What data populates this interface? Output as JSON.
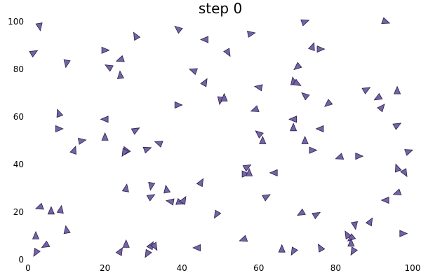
{
  "chart_data": {
    "type": "scatter",
    "title": "step 0",
    "xlabel": "",
    "ylabel": "",
    "xlim": [
      0,
      100
    ],
    "ylim": [
      0,
      100
    ],
    "x_ticks": [
      "0",
      "20",
      "40",
      "60",
      "80",
      "100"
    ],
    "y_ticks": [
      "0",
      "20",
      "40",
      "60",
      "80",
      "100"
    ],
    "grid": false,
    "legend": "none",
    "marker": "triangle",
    "marker_color": "#7563a8",
    "points": [
      {
        "x": 3,
        "y": 98,
        "angle": -80
      },
      {
        "x": 1.5,
        "y": 87,
        "angle": 30
      },
      {
        "x": 10,
        "y": 82.5,
        "angle": -100
      },
      {
        "x": 20,
        "y": 88,
        "angle": 0
      },
      {
        "x": 21,
        "y": 81,
        "angle": 150
      },
      {
        "x": 24,
        "y": 84,
        "angle": 200
      },
      {
        "x": 24,
        "y": 77.5,
        "angle": 95
      },
      {
        "x": 28,
        "y": 94,
        "angle": 120
      },
      {
        "x": 39,
        "y": 97,
        "angle": 140
      },
      {
        "x": 46,
        "y": 92.5,
        "angle": 180
      },
      {
        "x": 52,
        "y": 87,
        "angle": -60
      },
      {
        "x": 58,
        "y": 95,
        "angle": 10
      },
      {
        "x": 72,
        "y": 100,
        "angle": 20
      },
      {
        "x": 74,
        "y": 89.5,
        "angle": 70
      },
      {
        "x": 76,
        "y": 88.5,
        "angle": 0
      },
      {
        "x": 70,
        "y": 81,
        "angle": 220
      },
      {
        "x": 43,
        "y": 79.5,
        "angle": 160
      },
      {
        "x": 46,
        "y": 74.5,
        "angle": 60
      },
      {
        "x": 39,
        "y": 65,
        "angle": 0
      },
      {
        "x": 50,
        "y": 67,
        "angle": -100
      },
      {
        "x": 51,
        "y": 68,
        "angle": 90
      },
      {
        "x": 60,
        "y": 72.5,
        "angle": 170
      },
      {
        "x": 69,
        "y": 75,
        "angle": 100
      },
      {
        "x": 70,
        "y": 74,
        "angle": -30
      },
      {
        "x": 72,
        "y": 69,
        "angle": 140
      },
      {
        "x": 78,
        "y": 65.5,
        "angle": 220
      },
      {
        "x": 88,
        "y": 71.5,
        "angle": 30
      },
      {
        "x": 91,
        "y": 68,
        "angle": 210
      },
      {
        "x": 96,
        "y": 71,
        "angle": 90
      },
      {
        "x": 92,
        "y": 64,
        "angle": 50
      },
      {
        "x": 93,
        "y": 100,
        "angle": -20
      },
      {
        "x": 8,
        "y": 61.5,
        "angle": 110
      },
      {
        "x": 8,
        "y": 55,
        "angle": 0
      },
      {
        "x": 20,
        "y": 59,
        "angle": 180
      },
      {
        "x": 28,
        "y": 54.5,
        "angle": 30
      },
      {
        "x": 20,
        "y": 51.5,
        "angle": 90
      },
      {
        "x": 14,
        "y": 50,
        "angle": 10
      },
      {
        "x": 12,
        "y": 46,
        "angle": 70
      },
      {
        "x": 25.5,
        "y": 46,
        "angle": 120
      },
      {
        "x": 25,
        "y": 45,
        "angle": 240
      },
      {
        "x": 31,
        "y": 46.5,
        "angle": 20
      },
      {
        "x": 34,
        "y": 49,
        "angle": 160
      },
      {
        "x": 59,
        "y": 63,
        "angle": 200
      },
      {
        "x": 60,
        "y": 53,
        "angle": 140
      },
      {
        "x": 61,
        "y": 50,
        "angle": 90
      },
      {
        "x": 69,
        "y": 59,
        "angle": 180
      },
      {
        "x": 69,
        "y": 55.5,
        "angle": 90
      },
      {
        "x": 72,
        "y": 50,
        "angle": 90
      },
      {
        "x": 74,
        "y": 46,
        "angle": 0
      },
      {
        "x": 76,
        "y": 55,
        "angle": 180
      },
      {
        "x": 81,
        "y": 43,
        "angle": 200
      },
      {
        "x": 86,
        "y": 43.5,
        "angle": 0
      },
      {
        "x": 96,
        "y": 56.5,
        "angle": 30
      },
      {
        "x": 99,
        "y": 45.5,
        "angle": 20
      },
      {
        "x": 96,
        "y": 38.5,
        "angle": 110
      },
      {
        "x": 98,
        "y": 36.5,
        "angle": -60
      },
      {
        "x": 57,
        "y": 39,
        "angle": 30
      },
      {
        "x": 56.5,
        "y": 36,
        "angle": 0
      },
      {
        "x": 57.5,
        "y": 36.5,
        "angle": 90
      },
      {
        "x": 64,
        "y": 36.5,
        "angle": 180
      },
      {
        "x": 25.5,
        "y": 30,
        "angle": 80
      },
      {
        "x": 32,
        "y": 31,
        "angle": 260
      },
      {
        "x": 36,
        "y": 29.5,
        "angle": 100
      },
      {
        "x": 32,
        "y": 26.5,
        "angle": 30
      },
      {
        "x": 37,
        "y": 24.5,
        "angle": 170
      },
      {
        "x": 39.5,
        "y": 24,
        "angle": -20
      },
      {
        "x": 40.5,
        "y": 25,
        "angle": 60
      },
      {
        "x": 45,
        "y": 32.5,
        "angle": 60
      },
      {
        "x": 62,
        "y": 26.5,
        "angle": 30
      },
      {
        "x": 3,
        "y": 22,
        "angle": 200
      },
      {
        "x": 6,
        "y": 20.5,
        "angle": 90
      },
      {
        "x": 8.5,
        "y": 21,
        "angle": 80
      },
      {
        "x": 2,
        "y": 10,
        "angle": 90
      },
      {
        "x": 10,
        "y": 12.5,
        "angle": 100
      },
      {
        "x": 4.5,
        "y": 6,
        "angle": 210
      },
      {
        "x": 2,
        "y": 3,
        "angle": 240
      },
      {
        "x": 24,
        "y": 3.5,
        "angle": 60
      },
      {
        "x": 25.5,
        "y": 6.5,
        "angle": 90
      },
      {
        "x": 31,
        "y": 2.5,
        "angle": 240
      },
      {
        "x": 32,
        "y": 6,
        "angle": 60
      },
      {
        "x": 33,
        "y": 5.5,
        "angle": -60
      },
      {
        "x": 44,
        "y": 5,
        "angle": 180
      },
      {
        "x": 49,
        "y": 19,
        "angle": 240
      },
      {
        "x": 56,
        "y": 8.5,
        "angle": 200
      },
      {
        "x": 66,
        "y": 4.5,
        "angle": 90
      },
      {
        "x": 69,
        "y": 3.5,
        "angle": 240
      },
      {
        "x": 71,
        "y": 19.5,
        "angle": 210
      },
      {
        "x": 75,
        "y": 19,
        "angle": 30
      },
      {
        "x": 76,
        "y": 5,
        "angle": 120
      },
      {
        "x": 83,
        "y": 10.5,
        "angle": 120
      },
      {
        "x": 84,
        "y": 9,
        "angle": 220
      },
      {
        "x": 84,
        "y": 7,
        "angle": 90
      },
      {
        "x": 85,
        "y": 14.5,
        "angle": -80
      },
      {
        "x": 84.5,
        "y": 3.5,
        "angle": 240
      },
      {
        "x": 89,
        "y": 16,
        "angle": 60
      },
      {
        "x": 93,
        "y": 25,
        "angle": 180
      },
      {
        "x": 96,
        "y": 28,
        "angle": 200
      },
      {
        "x": 97.5,
        "y": 11,
        "angle": 0
      }
    ]
  }
}
